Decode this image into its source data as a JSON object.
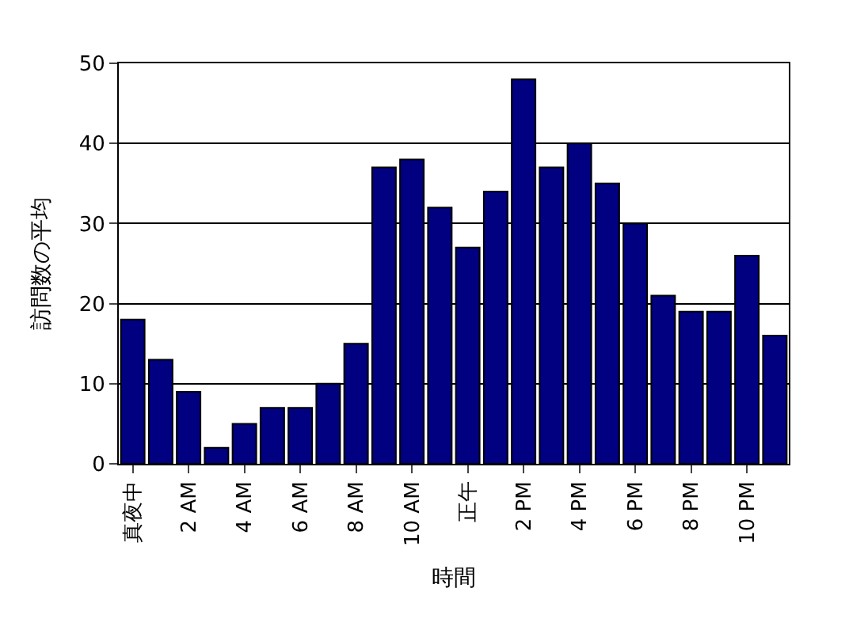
{
  "chart_data": {
    "type": "bar",
    "xlabel": "時間",
    "ylabel": "訪問数の平均",
    "categories": [
      "真夜中",
      null,
      "2 AM",
      null,
      "4 AM",
      null,
      "6 AM",
      null,
      "8 AM",
      null,
      "10 AM",
      null,
      "正午",
      null,
      "2 PM",
      null,
      "4 PM",
      null,
      "6 PM",
      null,
      "8 PM",
      null,
      "10 PM",
      null
    ],
    "values": [
      18,
      13,
      9,
      2,
      5,
      7,
      7,
      10,
      15,
      37,
      38,
      32,
      27,
      34,
      48,
      37,
      40,
      35,
      30,
      21,
      19,
      19,
      26,
      16
    ],
    "color": "#000080",
    "ylim": [
      0,
      50
    ],
    "yticks": [
      0,
      10,
      20,
      30,
      40,
      50
    ],
    "grid": "y"
  }
}
